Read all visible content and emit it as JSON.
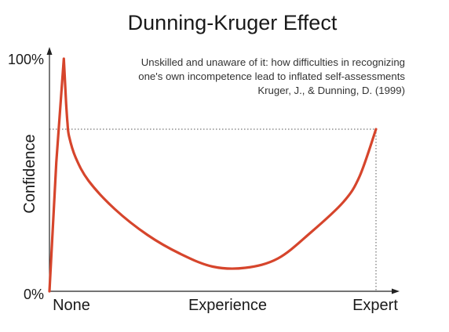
{
  "chart_data": {
    "type": "line",
    "title": "Dunning-Kruger Effect",
    "subtitle_lines": [
      "Unskilled and unaware of it: how difficulties in recognizing",
      "one's own incompetence lead to inflated self-assessments",
      "Kruger, J., & Dunning, D. (1999)"
    ],
    "ylabel": "Confidence",
    "xlabel": "Experience",
    "x_tick_labels": [
      "None",
      "Expert"
    ],
    "y_tick_labels": [
      "0%",
      "100%"
    ],
    "xlim": [
      0,
      100
    ],
    "ylim": [
      0,
      100
    ],
    "series": [
      {
        "color": "#d6452c",
        "x": [
          0,
          2.1,
          4.4,
          5.1,
          5.5,
          6.0,
          8.0,
          12.0,
          20.0,
          30.0,
          40.0,
          50.0,
          60.0,
          70.0,
          80.0,
          90.0,
          95.0,
          100.0
        ],
        "y": [
          0,
          55,
          99,
          80,
          72,
          66,
          57,
          47,
          35,
          24,
          16,
          10.5,
          10,
          14,
          25,
          38,
          49,
          69
        ]
      }
    ],
    "reference_lines": {
      "horizontal_y": 69,
      "vertical_x": 100,
      "style": "dotted"
    },
    "grid": false,
    "legend": "none"
  }
}
